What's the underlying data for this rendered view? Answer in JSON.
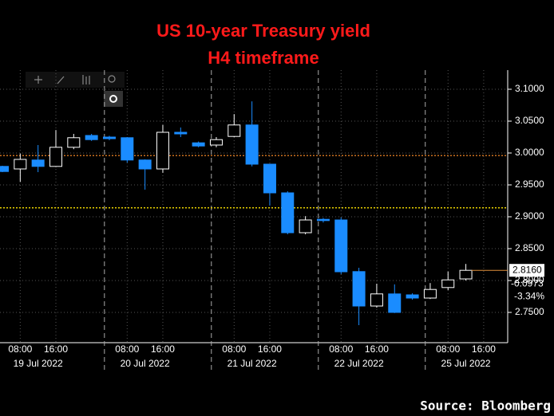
{
  "chart_data": {
    "type": "candlestick",
    "title": "US 10-year Treasury yield",
    "subtitle": "H4 timeframe",
    "source": "Source: Bloomberg",
    "categories": [
      null,
      "08:00",
      null,
      "16:00",
      null,
      null,
      null,
      "08:00",
      null,
      "16:00",
      null,
      null,
      null,
      "08:00",
      null,
      "16:00",
      null,
      null,
      null,
      "08:00",
      null,
      "16:00",
      null,
      null,
      null,
      "08:00",
      null,
      "16:00"
    ],
    "days": [
      "19 Jul 2022",
      "20 Jul 2022",
      "21 Jul 2022",
      "22 Jul 2022",
      "25 Jul 2022"
    ],
    "open": [
      2.979,
      2.975,
      2.989,
      2.979,
      3.009,
      3.0275,
      3.025,
      3.024,
      2.989,
      2.975,
      3.0325,
      3.016,
      3.0125,
      3.026,
      3.044,
      2.9825,
      2.9375,
      2.875,
      2.896,
      2.895,
      2.814,
      2.76,
      2.779,
      2.7775,
      2.7725,
      2.789,
      2.8025,
      null
    ],
    "high": [
      2.98,
      2.999,
      3.0125,
      3.036,
      3.03,
      3.03,
      3.027,
      3.025,
      2.99,
      3.044,
      3.04,
      3.018,
      3.025,
      3.061,
      3.081,
      2.9825,
      2.94,
      2.901,
      2.898,
      2.899,
      2.82,
      2.795,
      2.794,
      2.78,
      2.796,
      2.814,
      2.826,
      null
    ],
    "low": [
      2.97,
      2.955,
      2.97,
      2.978,
      3.006,
      3.019,
      3.02,
      2.985,
      2.9425,
      2.969,
      3.025,
      3.009,
      3.009,
      3.025,
      2.979,
      2.9175,
      2.8725,
      2.8725,
      2.891,
      2.81,
      2.73,
      2.7575,
      2.749,
      2.77,
      2.771,
      2.785,
      2.8,
      null
    ],
    "close": [
      2.971,
      2.99,
      2.979,
      3.009,
      3.024,
      3.021,
      3.0225,
      2.989,
      2.975,
      3.0325,
      3.03,
      3.011,
      3.021,
      3.044,
      2.9825,
      2.9375,
      2.875,
      2.895,
      2.894,
      2.81375,
      2.76,
      2.779,
      2.75,
      2.7725,
      2.786,
      2.801,
      2.816,
      null
    ],
    "colors": {
      "up": "#000000",
      "up_edge": "#ffffff",
      "down": "#1a8cff",
      "down_edge": "#1a8cff"
    },
    "ylim": [
      2.7025,
      3.13
    ],
    "yticks": [
      {
        "value": 2.75,
        "label": "2.7500"
      },
      {
        "value": 2.8,
        "label": "2.8000"
      },
      {
        "value": 2.85,
        "label": "2.8500"
      },
      {
        "value": 2.9,
        "label": "2.9000"
      },
      {
        "value": 2.95,
        "label": "2.9500"
      },
      {
        "value": 3.0,
        "label": "3.0000"
      },
      {
        "value": 3.05,
        "label": "3.0500"
      },
      {
        "value": 3.1,
        "label": "3.1000"
      }
    ],
    "grid": true,
    "levels": [
      {
        "value": 2.996,
        "color": "#c87020"
      },
      {
        "value": 2.914,
        "color": "#e8d000"
      }
    ],
    "last_price": {
      "value": 2.816,
      "label": "2.8160",
      "color": "#e0903a"
    },
    "change": -0.0973,
    "change_pct": {
      "value": -3.34,
      "label": "-3.34%"
    }
  }
}
